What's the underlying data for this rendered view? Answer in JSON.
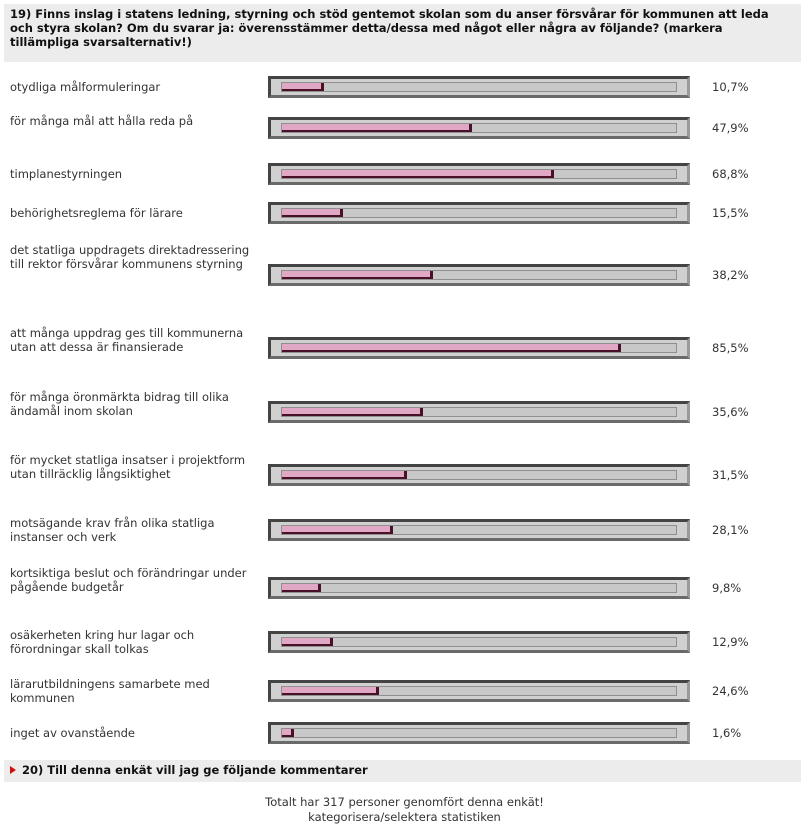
{
  "question": {
    "title": "19) Finns inslag i statens ledning, styrning och stöd gentemot skolan som du anser försvårar för kommunen att leda och styra skolan? Om du svarar ja: överensstämmer detta/dessa med något eller några av följande? (markera tillämpliga svarsalternativ!)"
  },
  "chart_data": {
    "type": "bar",
    "orientation": "horizontal",
    "categories": [
      "otydliga målformuleringar",
      "för många mål att hålla reda på",
      "timplanestyrningen",
      "behörighetsreglema för lärare",
      "det statliga uppdragets direktadressering till rektor försvårar kommunens styrning",
      "att många uppdrag ges till kommunerna utan att dessa är finansierade",
      "för många öronmärkta bidrag till olika ändamål inom skolan",
      "för mycket statliga insatser i projektform utan tillräcklig långsiktighet",
      "motsägande krav från olika statliga instanser och verk",
      "kortsiktiga beslut och förändringar under pågående budgetår",
      "osäkerheten kring hur lagar och förordningar skall tolkas",
      "lärarutbildningens samarbete med kommunen",
      "inget av ovanstående"
    ],
    "values": [
      10.7,
      47.9,
      68.8,
      15.5,
      38.2,
      85.5,
      35.6,
      31.5,
      28.1,
      9.8,
      12.9,
      24.6,
      1.6
    ],
    "value_labels": [
      "10,7%",
      "47,9%",
      "68,8%",
      "15,5%",
      "38,2%",
      "85,5%",
      "35,6%",
      "31,5%",
      "28,1%",
      "9,8%",
      "12,9%",
      "24,6%",
      "1,6%"
    ],
    "xlim": [
      0,
      100
    ],
    "unit": "%",
    "grid": false,
    "legend": "none",
    "colors": {
      "fill": "#e0a8c4",
      "fill_edge": "#4a1028",
      "track": "#c8c8c8",
      "frame": "#444444"
    }
  },
  "next_question": {
    "label": "20) Till denna enkät vill jag ge följande kommentarer"
  },
  "footer": {
    "summary": "Totalt har 317 personer genomfört denna enkät!",
    "link": "kategorisera/selektera statistiken"
  }
}
